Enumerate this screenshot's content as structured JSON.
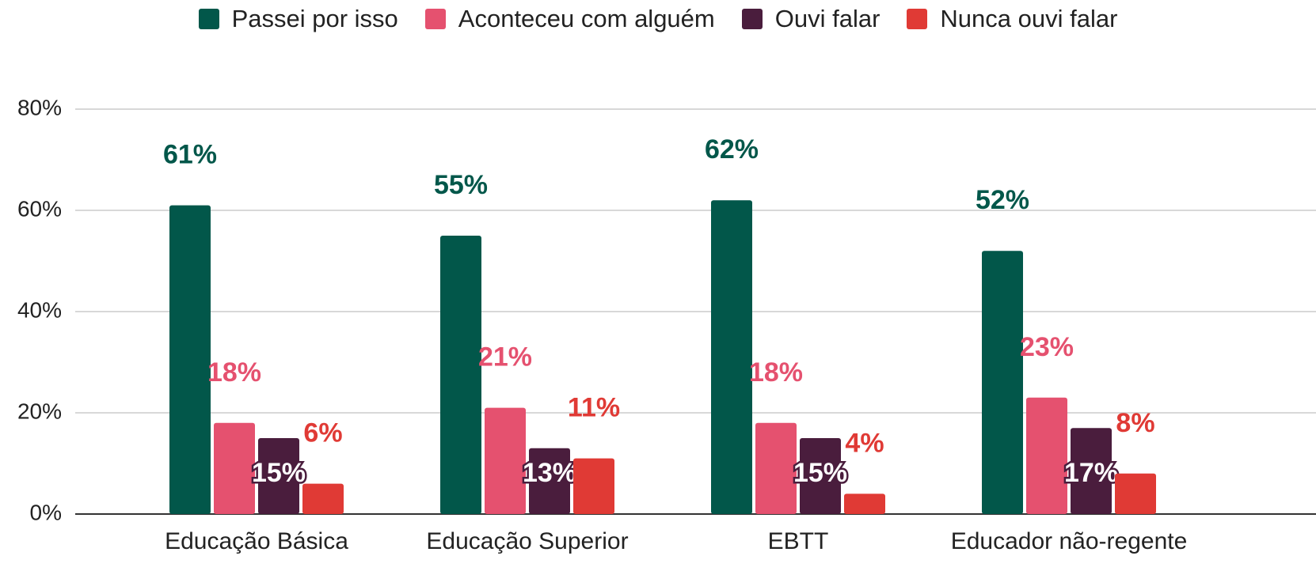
{
  "chart_data": {
    "type": "bar",
    "categories": [
      "Educação Básica",
      "Educação Superior",
      "EBTT",
      "Educador não-regente"
    ],
    "series": [
      {
        "name": "Passei por isso",
        "color": "#02574a",
        "values": [
          61,
          55,
          62,
          52
        ],
        "value_labels": [
          "61%",
          "55%",
          "62%",
          "52%"
        ]
      },
      {
        "name": "Aconteceu com alguém",
        "color": "#e5516f",
        "values": [
          18,
          21,
          18,
          23
        ],
        "value_labels": [
          "18%",
          "21%",
          "18%",
          "23%"
        ]
      },
      {
        "name": "Ouvi falar",
        "color": "#4a1d3d",
        "values": [
          15,
          13,
          15,
          17
        ],
        "value_labels": [
          "15%",
          "13%",
          "15%",
          "17%"
        ]
      },
      {
        "name": "Nunca ouvi falar",
        "color": "#e03a35",
        "values": [
          6,
          11,
          4,
          8
        ],
        "value_labels": [
          "6%",
          "11%",
          "4%",
          "8%"
        ]
      }
    ],
    "ylim": [
      0,
      80
    ],
    "yticks": [
      {
        "value": 0,
        "label": "0%"
      },
      {
        "value": 20,
        "label": "20%"
      },
      {
        "value": 40,
        "label": "40%"
      },
      {
        "value": 60,
        "label": "60%"
      },
      {
        "value": 80,
        "label": "80%"
      }
    ],
    "grid": true,
    "legend": "top"
  }
}
